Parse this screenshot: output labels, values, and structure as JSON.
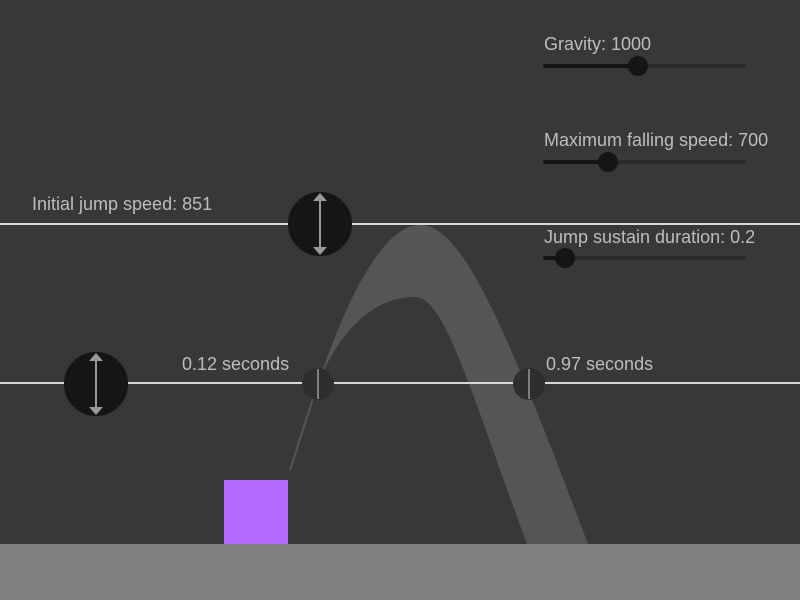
{
  "controls": {
    "gravity": {
      "label": "Gravity: 1000",
      "fraction": 0.47
    },
    "max_fall": {
      "label": "Maximum falling speed: 700",
      "fraction": 0.32
    },
    "sustain": {
      "label": "Jump sustain duration: 0.2",
      "fraction": 0.11
    }
  },
  "jump_speed_label": "Initial jump speed: 851",
  "time_left_label": "0.12 seconds",
  "time_right_label": "0.97 seconds",
  "colors": {
    "background": "#383838",
    "ground": "#808080",
    "player": "#b36bff",
    "trajectory": "#555555",
    "line": "#d8d8d8"
  }
}
